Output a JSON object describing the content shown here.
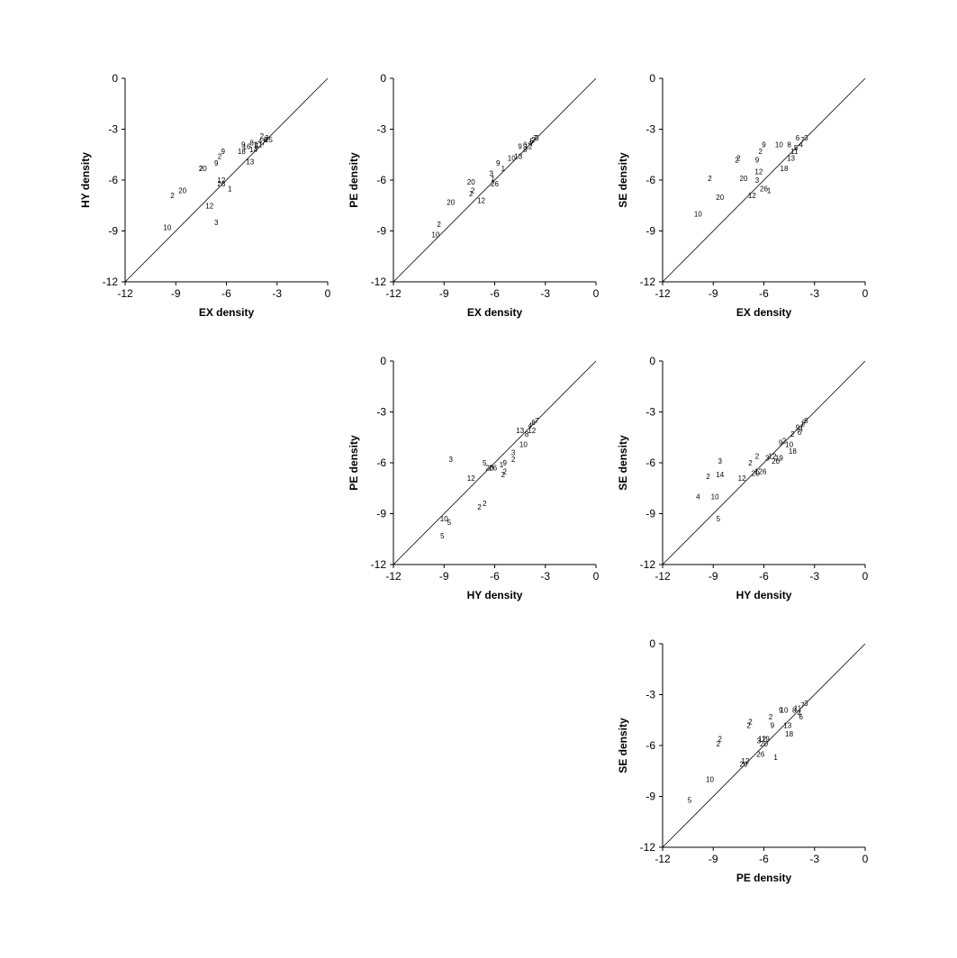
{
  "chart_data": [
    {
      "type": "scatter",
      "panel": "EX vs HY",
      "xlabel": "EX density",
      "ylabel": "HY density",
      "xlim": [
        -12,
        0
      ],
      "ylim": [
        -12,
        0
      ],
      "xticks": [
        "-12",
        "-9",
        "-6",
        "-3",
        "0"
      ],
      "yticks": [
        "0",
        "-3",
        "-6",
        "-9",
        "-12"
      ],
      "diagonal": true,
      "points": [
        {
          "x": -9.5,
          "y": -8.8,
          "label": "10"
        },
        {
          "x": -9.2,
          "y": -6.9,
          "label": "2"
        },
        {
          "x": -8.6,
          "y": -6.6,
          "label": "20"
        },
        {
          "x": -7.4,
          "y": -5.3,
          "label": "20"
        },
        {
          "x": -7.5,
          "y": -5.3,
          "label": "2"
        },
        {
          "x": -7.0,
          "y": -7.5,
          "label": "12"
        },
        {
          "x": -6.6,
          "y": -8.5,
          "label": "3"
        },
        {
          "x": -6.3,
          "y": -6.0,
          "label": "12"
        },
        {
          "x": -6.3,
          "y": -6.2,
          "label": "26"
        },
        {
          "x": -5.8,
          "y": -6.5,
          "label": "1"
        },
        {
          "x": -6.4,
          "y": -4.6,
          "label": "2"
        },
        {
          "x": -6.6,
          "y": -5.0,
          "label": "9"
        },
        {
          "x": -6.2,
          "y": -4.3,
          "label": "9"
        },
        {
          "x": -5.1,
          "y": -4.3,
          "label": "18"
        },
        {
          "x": -4.6,
          "y": -4.9,
          "label": "13"
        },
        {
          "x": -5.0,
          "y": -3.9,
          "label": "9"
        },
        {
          "x": -4.5,
          "y": -3.8,
          "label": "8"
        },
        {
          "x": -4.2,
          "y": -4.0,
          "label": "5"
        },
        {
          "x": -4.0,
          "y": -3.7,
          "label": "4"
        },
        {
          "x": -3.8,
          "y": -3.8,
          "label": "7"
        },
        {
          "x": -3.6,
          "y": -3.5,
          "label": "3"
        },
        {
          "x": -3.9,
          "y": -3.4,
          "label": "2"
        },
        {
          "x": -4.3,
          "y": -3.9,
          "label": "1"
        },
        {
          "x": -3.7,
          "y": -3.6,
          "label": "6"
        },
        {
          "x": -4.1,
          "y": -3.9,
          "label": "11"
        },
        {
          "x": -3.5,
          "y": -3.6,
          "label": "15"
        },
        {
          "x": -4.8,
          "y": -4.0,
          "label": "16"
        },
        {
          "x": -4.4,
          "y": -4.2,
          "label": "14"
        }
      ]
    },
    {
      "type": "scatter",
      "panel": "EX vs PE",
      "xlabel": "EX density",
      "ylabel": "PE density",
      "xlim": [
        -12,
        0
      ],
      "ylim": [
        -12,
        0
      ],
      "xticks": [
        "-12",
        "-9",
        "-6",
        "-3",
        "0"
      ],
      "yticks": [
        "0",
        "-3",
        "-6",
        "-9",
        "-12"
      ],
      "diagonal": true,
      "points": [
        {
          "x": -9.5,
          "y": -9.2,
          "label": "10"
        },
        {
          "x": -9.3,
          "y": -8.6,
          "label": "2"
        },
        {
          "x": -8.6,
          "y": -7.3,
          "label": "20"
        },
        {
          "x": -7.4,
          "y": -6.1,
          "label": "20"
        },
        {
          "x": -7.4,
          "y": -6.8,
          "label": "2"
        },
        {
          "x": -7.3,
          "y": -6.6,
          "label": "2"
        },
        {
          "x": -6.8,
          "y": -7.2,
          "label": "12"
        },
        {
          "x": -6.2,
          "y": -5.6,
          "label": "3"
        },
        {
          "x": -6.0,
          "y": -6.2,
          "label": "26"
        },
        {
          "x": -6.1,
          "y": -5.9,
          "label": "1"
        },
        {
          "x": -5.8,
          "y": -5.0,
          "label": "9"
        },
        {
          "x": -5.5,
          "y": -5.3,
          "label": "1"
        },
        {
          "x": -5.0,
          "y": -4.7,
          "label": "10"
        },
        {
          "x": -4.6,
          "y": -4.6,
          "label": "13"
        },
        {
          "x": -4.5,
          "y": -4.0,
          "label": "9"
        },
        {
          "x": -4.2,
          "y": -4.2,
          "label": "8"
        },
        {
          "x": -4.0,
          "y": -4.0,
          "label": "12"
        },
        {
          "x": -3.8,
          "y": -3.7,
          "label": "5"
        },
        {
          "x": -3.6,
          "y": -3.5,
          "label": "7"
        },
        {
          "x": -3.9,
          "y": -3.8,
          "label": "4"
        },
        {
          "x": -4.2,
          "y": -3.9,
          "label": "6"
        },
        {
          "x": -3.5,
          "y": -3.5,
          "label": "3"
        },
        {
          "x": -3.7,
          "y": -3.6,
          "label": "2"
        }
      ]
    },
    {
      "type": "scatter",
      "panel": "EX vs SE",
      "xlabel": "EX density",
      "ylabel": "SE density",
      "xlim": [
        -12,
        0
      ],
      "ylim": [
        -12,
        0
      ],
      "xticks": [
        "-12",
        "-9",
        "-6",
        "-3",
        "0"
      ],
      "yticks": [
        "0",
        "-3",
        "-6",
        "-9",
        "-12"
      ],
      "diagonal": true,
      "points": [
        {
          "x": -9.9,
          "y": -8.0,
          "label": "10"
        },
        {
          "x": -9.2,
          "y": -5.9,
          "label": "2"
        },
        {
          "x": -8.6,
          "y": -7.0,
          "label": "20"
        },
        {
          "x": -7.6,
          "y": -4.8,
          "label": "2"
        },
        {
          "x": -7.5,
          "y": -4.7,
          "label": "2"
        },
        {
          "x": -7.2,
          "y": -5.9,
          "label": "20"
        },
        {
          "x": -6.7,
          "y": -6.9,
          "label": "12"
        },
        {
          "x": -6.4,
          "y": -6.0,
          "label": "3"
        },
        {
          "x": -6.3,
          "y": -5.5,
          "label": "12"
        },
        {
          "x": -6.4,
          "y": -4.8,
          "label": "9"
        },
        {
          "x": -6.2,
          "y": -4.3,
          "label": "2"
        },
        {
          "x": -6.0,
          "y": -3.9,
          "label": "9"
        },
        {
          "x": -6.0,
          "y": -6.5,
          "label": "26"
        },
        {
          "x": -5.7,
          "y": -6.6,
          "label": "1"
        },
        {
          "x": -5.1,
          "y": -3.9,
          "label": "10"
        },
        {
          "x": -4.8,
          "y": -5.3,
          "label": "18"
        },
        {
          "x": -4.4,
          "y": -4.7,
          "label": "13"
        },
        {
          "x": -4.5,
          "y": -3.9,
          "label": "8"
        },
        {
          "x": -4.1,
          "y": -4.1,
          "label": "5"
        },
        {
          "x": -3.8,
          "y": -3.9,
          "label": "4"
        },
        {
          "x": -3.7,
          "y": -3.6,
          "label": "7"
        },
        {
          "x": -3.5,
          "y": -3.5,
          "label": "3"
        },
        {
          "x": -4.0,
          "y": -3.5,
          "label": "6"
        },
        {
          "x": -4.2,
          "y": -4.3,
          "label": "11"
        }
      ]
    },
    {
      "type": "scatter",
      "panel": "HY vs PE",
      "xlabel": "HY density",
      "ylabel": "PE density",
      "xlim": [
        -12,
        0
      ],
      "ylim": [
        -12,
        0
      ],
      "xticks": [
        "-12",
        "-9",
        "-6",
        "-3",
        "0"
      ],
      "yticks": [
        "0",
        "-3",
        "-6",
        "-9",
        "-12"
      ],
      "diagonal": true,
      "points": [
        {
          "x": -9.1,
          "y": -10.3,
          "label": "5"
        },
        {
          "x": -9.0,
          "y": -9.3,
          "label": "10"
        },
        {
          "x": -8.7,
          "y": -9.5,
          "label": "5"
        },
        {
          "x": -8.6,
          "y": -5.8,
          "label": "3"
        },
        {
          "x": -7.4,
          "y": -6.9,
          "label": "12"
        },
        {
          "x": -6.9,
          "y": -8.6,
          "label": "2"
        },
        {
          "x": -6.6,
          "y": -8.4,
          "label": "2"
        },
        {
          "x": -6.6,
          "y": -6.0,
          "label": "5"
        },
        {
          "x": -6.3,
          "y": -6.3,
          "label": "20"
        },
        {
          "x": -6.1,
          "y": -6.3,
          "label": "26"
        },
        {
          "x": -5.5,
          "y": -6.7,
          "label": "2"
        },
        {
          "x": -5.4,
          "y": -6.5,
          "label": "2"
        },
        {
          "x": -5.4,
          "y": -6.0,
          "label": "9"
        },
        {
          "x": -5.6,
          "y": -6.1,
          "label": "1"
        },
        {
          "x": -4.9,
          "y": -5.8,
          "label": "2"
        },
        {
          "x": -4.9,
          "y": -5.4,
          "label": "3"
        },
        {
          "x": -4.5,
          "y": -4.1,
          "label": "13"
        },
        {
          "x": -4.3,
          "y": -4.9,
          "label": "10"
        },
        {
          "x": -4.1,
          "y": -4.3,
          "label": "8"
        },
        {
          "x": -3.9,
          "y": -3.8,
          "label": "4"
        },
        {
          "x": -3.7,
          "y": -3.6,
          "label": "6"
        },
        {
          "x": -3.5,
          "y": -3.5,
          "label": "7"
        },
        {
          "x": -3.8,
          "y": -4.1,
          "label": "12"
        }
      ]
    },
    {
      "type": "scatter",
      "panel": "HY vs SE",
      "xlabel": "HY density",
      "ylabel": "SE density",
      "xlim": [
        -12,
        0
      ],
      "ylim": [
        -12,
        0
      ],
      "xticks": [
        "-12",
        "-9",
        "-6",
        "-3",
        "0"
      ],
      "yticks": [
        "0",
        "-3",
        "-6",
        "-9",
        "-12"
      ],
      "diagonal": true,
      "points": [
        {
          "x": -9.9,
          "y": -8.0,
          "label": "4"
        },
        {
          "x": -9.3,
          "y": -6.8,
          "label": "2"
        },
        {
          "x": -8.9,
          "y": -8.0,
          "label": "10"
        },
        {
          "x": -8.6,
          "y": -5.9,
          "label": "3"
        },
        {
          "x": -8.6,
          "y": -6.7,
          "label": "14"
        },
        {
          "x": -8.7,
          "y": -9.3,
          "label": "5"
        },
        {
          "x": -7.3,
          "y": -6.9,
          "label": "12"
        },
        {
          "x": -6.8,
          "y": -6.0,
          "label": "2"
        },
        {
          "x": -6.5,
          "y": -6.6,
          "label": "20"
        },
        {
          "x": -6.4,
          "y": -5.6,
          "label": "2"
        },
        {
          "x": -6.2,
          "y": -6.5,
          "label": "126"
        },
        {
          "x": -5.8,
          "y": -5.7,
          "label": "3"
        },
        {
          "x": -5.5,
          "y": -5.6,
          "label": "12"
        },
        {
          "x": -5.3,
          "y": -5.9,
          "label": "20"
        },
        {
          "x": -5.1,
          "y": -5.7,
          "label": "19"
        },
        {
          "x": -5.0,
          "y": -4.8,
          "label": "9"
        },
        {
          "x": -4.8,
          "y": -4.7,
          "label": "2"
        },
        {
          "x": -4.3,
          "y": -4.3,
          "label": "2"
        },
        {
          "x": -4.5,
          "y": -4.9,
          "label": "10"
        },
        {
          "x": -4.3,
          "y": -5.3,
          "label": "18"
        },
        {
          "x": -4.0,
          "y": -3.9,
          "label": "9"
        },
        {
          "x": -3.8,
          "y": -4.0,
          "label": "4"
        },
        {
          "x": -3.6,
          "y": -3.6,
          "label": "7"
        },
        {
          "x": -3.5,
          "y": -3.5,
          "label": "3"
        },
        {
          "x": -3.9,
          "y": -4.2,
          "label": "6"
        },
        {
          "x": -3.7,
          "y": -3.7,
          "label": "1"
        }
      ]
    },
    {
      "type": "scatter",
      "panel": "PE vs SE",
      "xlabel": "PE density",
      "ylabel": "SE density",
      "xlim": [
        -12,
        0
      ],
      "ylim": [
        -12,
        0
      ],
      "xticks": [
        "-12",
        "-9",
        "-6",
        "-3",
        "0"
      ],
      "yticks": [
        "0",
        "-3",
        "-6",
        "-9",
        "-12"
      ],
      "diagonal": true,
      "points": [
        {
          "x": -10.4,
          "y": -9.2,
          "label": "5"
        },
        {
          "x": -9.2,
          "y": -8.0,
          "label": "10"
        },
        {
          "x": -8.7,
          "y": -5.9,
          "label": "2"
        },
        {
          "x": -8.6,
          "y": -5.6,
          "label": "2"
        },
        {
          "x": -7.2,
          "y": -7.1,
          "label": "20"
        },
        {
          "x": -7.1,
          "y": -6.9,
          "label": "12"
        },
        {
          "x": -6.9,
          "y": -4.8,
          "label": "2"
        },
        {
          "x": -6.8,
          "y": -4.6,
          "label": "2"
        },
        {
          "x": -6.3,
          "y": -5.7,
          "label": "3"
        },
        {
          "x": -6.2,
          "y": -6.5,
          "label": "26"
        },
        {
          "x": -6.1,
          "y": -5.6,
          "label": "12"
        },
        {
          "x": -5.9,
          "y": -5.6,
          "label": "19"
        },
        {
          "x": -6.0,
          "y": -5.9,
          "label": "20"
        },
        {
          "x": -5.6,
          "y": -4.3,
          "label": "2"
        },
        {
          "x": -5.5,
          "y": -4.8,
          "label": "9"
        },
        {
          "x": -5.3,
          "y": -6.7,
          "label": "1"
        },
        {
          "x": -5.0,
          "y": -3.9,
          "label": "9"
        },
        {
          "x": -4.8,
          "y": -3.9,
          "label": "10"
        },
        {
          "x": -4.6,
          "y": -4.8,
          "label": "13"
        },
        {
          "x": -4.5,
          "y": -5.3,
          "label": "18"
        },
        {
          "x": -4.2,
          "y": -3.9,
          "label": "8"
        },
        {
          "x": -3.9,
          "y": -4.1,
          "label": "4"
        },
        {
          "x": -3.7,
          "y": -3.6,
          "label": "7"
        },
        {
          "x": -3.5,
          "y": -3.5,
          "label": "3"
        },
        {
          "x": -3.8,
          "y": -4.3,
          "label": "6"
        },
        {
          "x": -4.0,
          "y": -3.8,
          "label": "11"
        }
      ]
    }
  ]
}
